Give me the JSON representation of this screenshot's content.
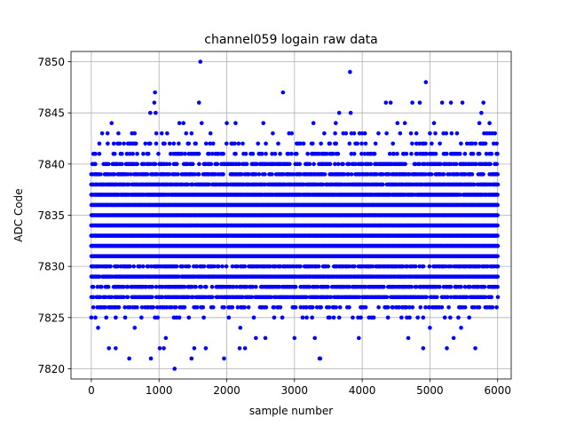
{
  "chart_data": {
    "type": "scatter",
    "title": "channel059 logain raw data",
    "xlabel": "sample number",
    "ylabel": "ADC Code",
    "xlim": [
      -300,
      6200
    ],
    "ylim": [
      7819,
      7851
    ],
    "xticks": [
      0,
      1000,
      2000,
      3000,
      4000,
      5000,
      6000
    ],
    "yticks": [
      7820,
      7825,
      7830,
      7835,
      7840,
      7845,
      7850
    ],
    "grid": true,
    "legend": "none",
    "series": [
      {
        "color": "#0000ff",
        "marker": "circle",
        "n_samples": 6000,
        "density": {
          "7826": 0.35,
          "7827": 0.75,
          "7828": 0.6,
          "7829": 0.9,
          "7830": 0.6,
          "7831": 1.0,
          "7832": 1.0,
          "7833": 1.0,
          "7834": 1.0,
          "7835": 1.0,
          "7836": 1.0,
          "7837": 0.95,
          "7838": 0.85,
          "7839": 0.6,
          "7840": 0.55,
          "7841": 0.3,
          "7842": 0.2
        },
        "outliers": [
          {
            "x": 1230,
            "y": 7820
          },
          {
            "x": 1610,
            "y": 7850
          },
          {
            "x": 4940,
            "y": 7848
          },
          {
            "x": 3820,
            "y": 7849
          },
          {
            "x": 2830,
            "y": 7847
          },
          {
            "x": 940,
            "y": 7847
          },
          {
            "x": 930,
            "y": 7846
          },
          {
            "x": 1590,
            "y": 7846
          },
          {
            "x": 4350,
            "y": 7846
          },
          {
            "x": 4420,
            "y": 7846
          },
          {
            "x": 4740,
            "y": 7846
          },
          {
            "x": 4850,
            "y": 7846
          },
          {
            "x": 5180,
            "y": 7846
          },
          {
            "x": 5310,
            "y": 7846
          },
          {
            "x": 5480,
            "y": 7846
          },
          {
            "x": 5790,
            "y": 7846
          },
          {
            "x": 870,
            "y": 7845
          },
          {
            "x": 950,
            "y": 7845
          },
          {
            "x": 3660,
            "y": 7845
          },
          {
            "x": 3830,
            "y": 7845
          },
          {
            "x": 5760,
            "y": 7845
          },
          {
            "x": 300,
            "y": 7844
          },
          {
            "x": 1300,
            "y": 7844
          },
          {
            "x": 1360,
            "y": 7844
          },
          {
            "x": 1630,
            "y": 7844
          },
          {
            "x": 2000,
            "y": 7844
          },
          {
            "x": 2130,
            "y": 7844
          },
          {
            "x": 2540,
            "y": 7844
          },
          {
            "x": 3280,
            "y": 7844
          },
          {
            "x": 3610,
            "y": 7844
          },
          {
            "x": 4520,
            "y": 7844
          },
          {
            "x": 4630,
            "y": 7844
          },
          {
            "x": 5060,
            "y": 7844
          },
          {
            "x": 5730,
            "y": 7844
          },
          {
            "x": 5880,
            "y": 7844
          },
          {
            "x": 560,
            "y": 7821
          },
          {
            "x": 880,
            "y": 7821
          },
          {
            "x": 1480,
            "y": 7821
          },
          {
            "x": 1960,
            "y": 7821
          },
          {
            "x": 3380,
            "y": 7821
          },
          {
            "x": 3370,
            "y": 7821
          },
          {
            "x": 260,
            "y": 7822
          },
          {
            "x": 360,
            "y": 7822
          },
          {
            "x": 1010,
            "y": 7822
          },
          {
            "x": 1070,
            "y": 7822
          },
          {
            "x": 1520,
            "y": 7822
          },
          {
            "x": 1690,
            "y": 7822
          },
          {
            "x": 2190,
            "y": 7822
          },
          {
            "x": 2270,
            "y": 7822
          },
          {
            "x": 4900,
            "y": 7822
          },
          {
            "x": 5250,
            "y": 7822
          },
          {
            "x": 5670,
            "y": 7822
          },
          {
            "x": 3000,
            "y": 7823
          },
          {
            "x": 3300,
            "y": 7823
          },
          {
            "x": 3950,
            "y": 7823
          },
          {
            "x": 4680,
            "y": 7823
          },
          {
            "x": 1100,
            "y": 7823
          },
          {
            "x": 2430,
            "y": 7823
          },
          {
            "x": 2570,
            "y": 7823
          },
          {
            "x": 5350,
            "y": 7823
          },
          {
            "x": 100,
            "y": 7824
          },
          {
            "x": 2200,
            "y": 7824
          },
          {
            "x": 5000,
            "y": 7824
          },
          {
            "x": 5460,
            "y": 7824
          },
          {
            "x": 640,
            "y": 7824
          },
          {
            "x": 0,
            "y": 7825
          },
          {
            "x": 360,
            "y": 7825
          },
          {
            "x": 980,
            "y": 7825
          },
          {
            "x": 1440,
            "y": 7825
          },
          {
            "x": 2030,
            "y": 7825
          },
          {
            "x": 2400,
            "y": 7825
          },
          {
            "x": 3120,
            "y": 7825
          },
          {
            "x": 3520,
            "y": 7825
          },
          {
            "x": 4170,
            "y": 7825
          },
          {
            "x": 5580,
            "y": 7825
          }
        ]
      }
    ]
  }
}
